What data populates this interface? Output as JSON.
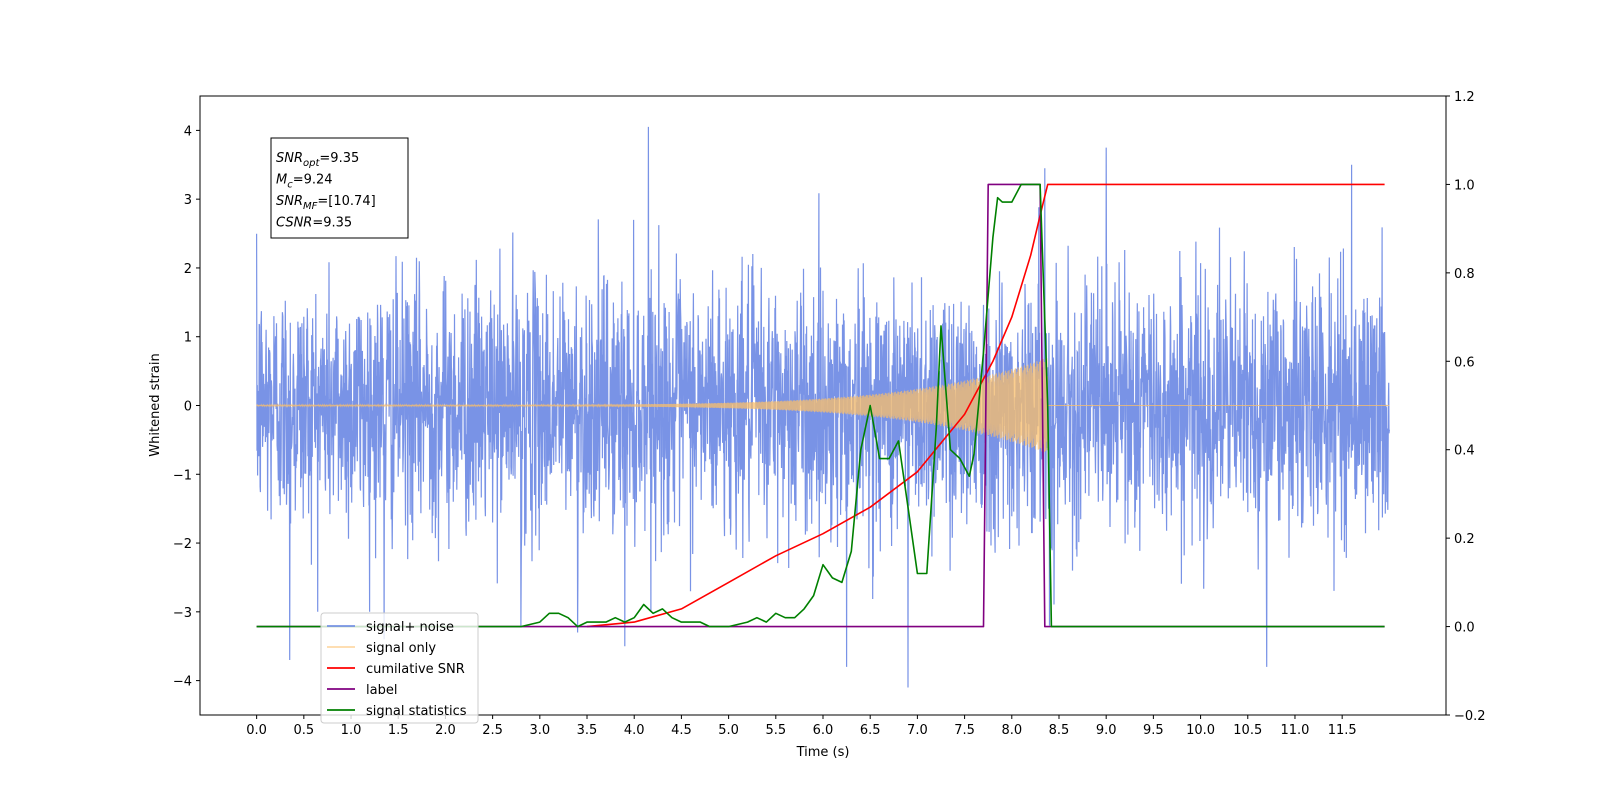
{
  "chart_data": {
    "type": "line",
    "xlabel": "Time (s)",
    "ylabel_left": "Whitened strain",
    "ylabel_right": "",
    "xlim": [
      -0.6,
      12.6
    ],
    "ylim_left": [
      -4.5,
      4.5
    ],
    "ylim_right": [
      -0.2,
      1.2
    ],
    "x_ticks": [
      "0.0",
      "0.5",
      "1.0",
      "1.5",
      "2.0",
      "2.5",
      "3.0",
      "3.5",
      "4.0",
      "4.5",
      "5.0",
      "5.5",
      "6.0",
      "6.5",
      "7.0",
      "7.5",
      "8.0",
      "8.5",
      "9.0",
      "9.5",
      "10.0",
      "10.5",
      "11.0",
      "11.5"
    ],
    "y_ticks_left": [
      "4",
      "3",
      "2",
      "1",
      "0",
      "−1",
      "−2",
      "−3",
      "−4"
    ],
    "y_ticks_right": [
      "1.2",
      "1.0",
      "0.8",
      "0.6",
      "0.4",
      "0.2",
      "0.0",
      "−0.2"
    ],
    "grid": false,
    "legend_position": "lower-left",
    "annotation_box": {
      "lines": [
        {
          "italic": "SNR",
          "sub": "opt",
          "rest": "=9.35"
        },
        {
          "italic": "M",
          "sub": "c",
          "rest": "=9.24"
        },
        {
          "italic": "SNR",
          "sub": "MF",
          "rest": "=[10.74]"
        },
        {
          "italic": "CSNR",
          "sub": "",
          "rest": "=9.35"
        }
      ]
    },
    "series": [
      {
        "name": "signal+ noise",
        "axis": "left",
        "color": "#6a87e3",
        "x_range": [
          0,
          12
        ],
        "noise_std": 0.9,
        "visible_peaks": [
          [
            0.35,
            -3.7
          ],
          [
            1.35,
            -3.4
          ],
          [
            2.8,
            -3.2
          ],
          [
            3.4,
            -3.3
          ],
          [
            3.9,
            -3.5
          ],
          [
            4.15,
            4.05
          ],
          [
            6.25,
            -3.8
          ],
          [
            6.9,
            -4.1
          ],
          [
            8.35,
            3.45
          ],
          [
            8.4,
            -3.2
          ],
          [
            9.0,
            3.75
          ],
          [
            10.7,
            -3.8
          ],
          [
            11.6,
            3.5
          ]
        ]
      },
      {
        "name": "signal only",
        "axis": "left",
        "color": "#fbbf6a",
        "x_range": [
          0,
          12
        ],
        "chirp_end": 8.38,
        "amplitude_start": 0.01,
        "amplitude_at_end": 0.7
      },
      {
        "name": "cumilative SNR",
        "axis": "right",
        "color": "#ff0000",
        "x": [
          3.5,
          4.0,
          4.5,
          5.0,
          5.5,
          6.0,
          6.5,
          7.0,
          7.5,
          7.8,
          8.0,
          8.2,
          8.3,
          8.38,
          8.4,
          9.0,
          10.0,
          11.0,
          11.95
        ],
        "y": [
          0.0,
          0.01,
          0.04,
          0.1,
          0.16,
          0.21,
          0.27,
          0.35,
          0.48,
          0.6,
          0.7,
          0.84,
          0.93,
          1.0,
          1.0,
          1.0,
          1.0,
          1.0,
          1.0
        ]
      },
      {
        "name": "label",
        "axis": "right",
        "color": "#800080",
        "x": [
          0,
          7.7,
          7.75,
          8.3,
          8.35,
          11.95
        ],
        "y": [
          0.0,
          0.0,
          1.0,
          1.0,
          0.0,
          0.0
        ]
      },
      {
        "name": "signal statistics",
        "axis": "right",
        "color": "#008000",
        "x": [
          0,
          2.8,
          3.0,
          3.1,
          3.2,
          3.3,
          3.4,
          3.5,
          3.6,
          3.7,
          3.8,
          3.9,
          4.0,
          4.1,
          4.2,
          4.3,
          4.4,
          4.5,
          4.6,
          4.7,
          4.8,
          5.0,
          5.2,
          5.3,
          5.4,
          5.5,
          5.6,
          5.7,
          5.8,
          5.9,
          6.0,
          6.1,
          6.2,
          6.3,
          6.4,
          6.5,
          6.6,
          6.7,
          6.8,
          6.9,
          7.0,
          7.1,
          7.2,
          7.25,
          7.35,
          7.45,
          7.55,
          7.6,
          7.7,
          7.8,
          7.85,
          7.9,
          8.0,
          8.1,
          8.2,
          8.3,
          8.38,
          8.42,
          11.95
        ],
        "y": [
          0.0,
          0.0,
          0.01,
          0.03,
          0.03,
          0.02,
          0.0,
          0.01,
          0.01,
          0.01,
          0.02,
          0.01,
          0.02,
          0.05,
          0.03,
          0.04,
          0.02,
          0.01,
          0.01,
          0.01,
          0.0,
          0.0,
          0.01,
          0.02,
          0.01,
          0.03,
          0.02,
          0.02,
          0.04,
          0.07,
          0.14,
          0.11,
          0.1,
          0.17,
          0.4,
          0.5,
          0.38,
          0.38,
          0.42,
          0.27,
          0.12,
          0.12,
          0.45,
          0.68,
          0.4,
          0.38,
          0.34,
          0.39,
          0.62,
          0.88,
          0.97,
          0.96,
          0.96,
          1.0,
          1.0,
          1.0,
          0.5,
          0.0,
          0.0
        ]
      }
    ]
  }
}
